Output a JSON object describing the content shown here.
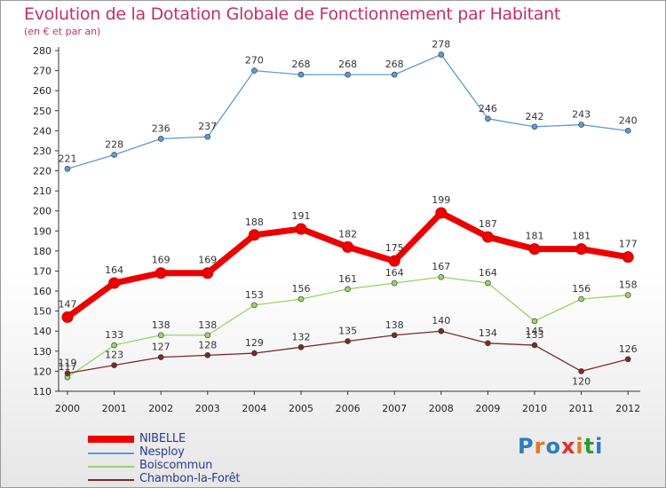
{
  "title": "Evolution de la Dotation Globale de Fonctionnement par Habitant",
  "subtitle": "(en € et par an)",
  "logo": {
    "text": "Proxiti",
    "letter_colors": [
      "#2a7dc0",
      "#e07a1a",
      "#2a7dc0",
      "#e03030",
      "#e07a1a",
      "#2a9a3a",
      "#2a7dc0"
    ]
  },
  "chart_data": {
    "type": "line",
    "x": [
      "2000",
      "2001",
      "2002",
      "2003",
      "2004",
      "2005",
      "2006",
      "2007",
      "2008",
      "2009",
      "2010",
      "2011",
      "2012"
    ],
    "ylim": [
      110,
      280
    ],
    "yticks": [
      110,
      120,
      130,
      140,
      150,
      160,
      170,
      180,
      190,
      200,
      210,
      220,
      230,
      240,
      250,
      260,
      270,
      280
    ],
    "grid": false,
    "legend_position": "bottom-left",
    "series": [
      {
        "name": "NIBELLE",
        "color": "#ee0000",
        "emphasis": true,
        "values": [
          147,
          164,
          169,
          169,
          188,
          191,
          182,
          175,
          199,
          187,
          181,
          181,
          177
        ]
      },
      {
        "name": "Nesploy",
        "color": "#5b9bd5",
        "emphasis": false,
        "values": [
          221,
          228,
          236,
          237,
          270,
          268,
          268,
          268,
          278,
          246,
          242,
          243,
          240
        ]
      },
      {
        "name": "Boiscommun",
        "color": "#99d36b",
        "emphasis": false,
        "values": [
          117,
          133,
          138,
          138,
          153,
          156,
          161,
          164,
          167,
          164,
          145,
          156,
          158
        ]
      },
      {
        "name": "Chambon-la-Forêt",
        "color": "#7a2a2a",
        "emphasis": false,
        "values": [
          119,
          123,
          127,
          128,
          129,
          132,
          135,
          138,
          140,
          134,
          133,
          120,
          126
        ]
      }
    ]
  }
}
